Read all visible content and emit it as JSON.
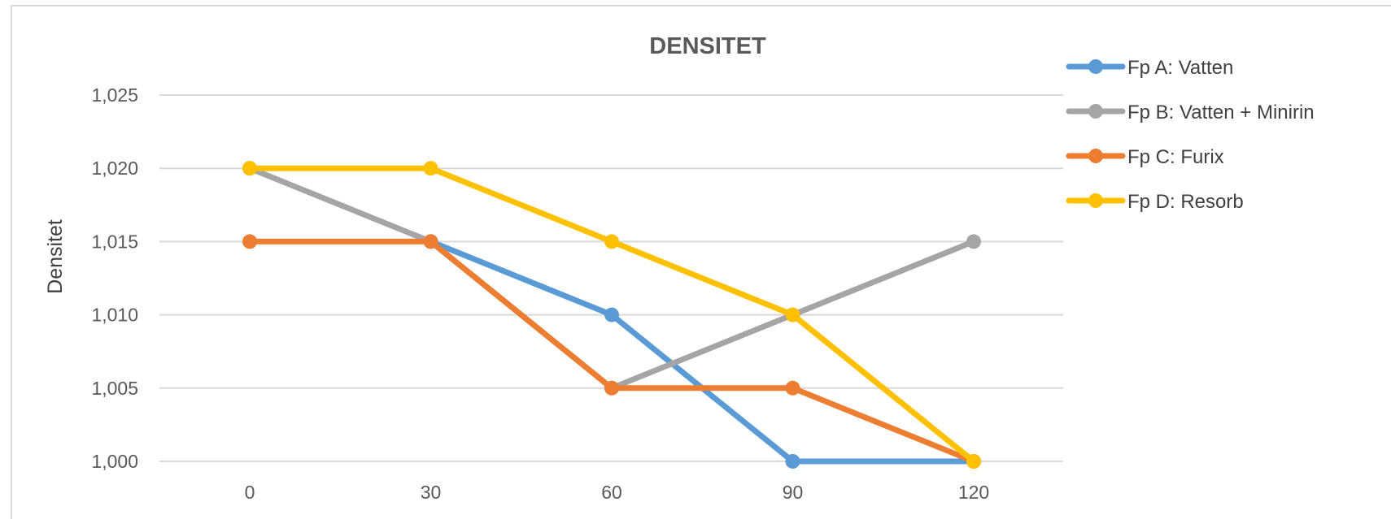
{
  "chart_data": {
    "type": "line",
    "title": "DENSITET",
    "xlabel": "",
    "ylabel": "Densitet",
    "categories": [
      "0",
      "30",
      "60",
      "90",
      "120"
    ],
    "x": [
      0,
      30,
      60,
      90,
      120
    ],
    "ylim": [
      1.0,
      1.025
    ],
    "yticks": [
      1.0,
      1.005,
      1.01,
      1.015,
      1.02,
      1.025
    ],
    "ytick_labels": [
      "1,000",
      "1,005",
      "1,010",
      "1,015",
      "1,020",
      "1,025"
    ],
    "grid": true,
    "legend_position": "right",
    "series": [
      {
        "name": "Fp A:  Vatten",
        "color": "#5b9bd5",
        "values": [
          null,
          1.015,
          1.01,
          1.0,
          1.0
        ]
      },
      {
        "name": "Fp B:  Vatten + Minirin",
        "color": "#a5a5a5",
        "values": [
          1.02,
          1.015,
          1.005,
          1.01,
          1.015
        ]
      },
      {
        "name": "Fp C:  Furix",
        "color": "#ed7d31",
        "values": [
          1.015,
          1.015,
          1.005,
          1.005,
          1.0
        ]
      },
      {
        "name": "Fp D:  Resorb",
        "color": "#ffc000",
        "values": [
          1.02,
          1.02,
          1.015,
          1.01,
          1.0
        ]
      }
    ]
  }
}
